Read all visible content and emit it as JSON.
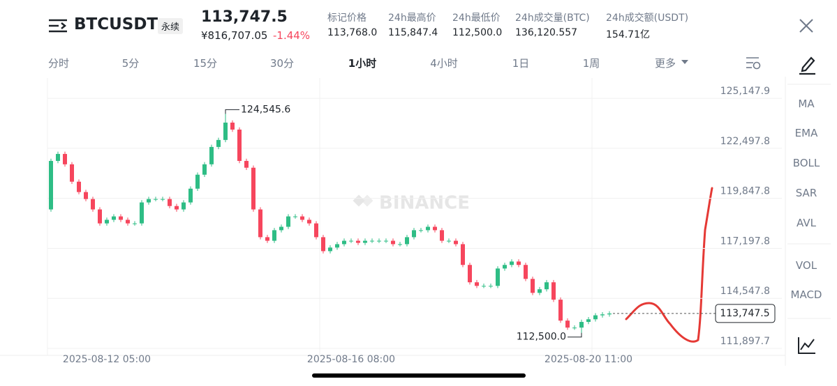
{
  "header": {
    "symbol": "BTCUSDT",
    "contract": "永续",
    "price": "113,747.5",
    "price_cny": "¥816,707.05",
    "change": "-1.44%",
    "stats": [
      {
        "label": "标记价格",
        "value": "113,768.0"
      },
      {
        "label": "24h最高价",
        "value": "115,847.4"
      },
      {
        "label": "24h最低价",
        "value": "112,500.0"
      },
      {
        "label": "24h成交量(BTC)",
        "value": "136,120.557"
      },
      {
        "label": "24h成交额(USDT)",
        "value": "154.71亿"
      }
    ]
  },
  "tabs": [
    "分时",
    "5分",
    "15分",
    "30分",
    "1小时",
    "4小时",
    "1日",
    "1周",
    "更多"
  ],
  "indicators": [
    "MA",
    "EMA",
    "BOLL",
    "SAR",
    "AVL",
    "VOL",
    "MACD"
  ],
  "chart_data": {
    "type": "candlestick",
    "watermark": "BINANCE",
    "up_color": "#2ebd85",
    "down_color": "#f6465d",
    "grid": true,
    "ylim": [
      111530,
      126110
    ],
    "yticks": [
      {
        "value": 125147.9,
        "label": "125,147.9"
      },
      {
        "value": 122497.8,
        "label": "122,497.8"
      },
      {
        "value": 119847.8,
        "label": "119,847.8"
      },
      {
        "value": 117197.8,
        "label": "117,197.8"
      },
      {
        "value": 114547.8,
        "label": "114,547.8"
      },
      {
        "value": 111897.7,
        "label": "111,897.7"
      }
    ],
    "categories": [
      null,
      null,
      null,
      null,
      null,
      null,
      null,
      null,
      "2025-08-12 05:00",
      null,
      null,
      null,
      null,
      null,
      null,
      null,
      null,
      null,
      null,
      null,
      null,
      null,
      null,
      null,
      null,
      null,
      null,
      null,
      null,
      null,
      null,
      null,
      null,
      null,
      null,
      null,
      null,
      null,
      null,
      null,
      null,
      null,
      null,
      "2025-08-16 08:00",
      null,
      null,
      null,
      null,
      null,
      null,
      null,
      null,
      null,
      null,
      null,
      null,
      null,
      null,
      null,
      null,
      null,
      null,
      null,
      null,
      null,
      null,
      null,
      null,
      null,
      null,
      null,
      null,
      null,
      null,
      null,
      null,
      null,
      "2025-08-20 11:00",
      null,
      null,
      null
    ],
    "open": [
      119260,
      121830,
      122200,
      121650,
      120730,
      120180,
      119810,
      119260,
      118520,
      118710,
      118890,
      118710,
      118520,
      118520,
      119630,
      119810,
      119810,
      119810,
      119440,
      119260,
      119630,
      120360,
      121100,
      121650,
      122570,
      122940,
      123860,
      123490,
      121830,
      121470,
      119260,
      117790,
      117600,
      118160,
      118340,
      118890,
      118890,
      118710,
      118520,
      117790,
      117050,
      117240,
      117420,
      117600,
      117600,
      117490,
      117600,
      117600,
      117600,
      117600,
      117420,
      117420,
      117790,
      118160,
      118160,
      118340,
      118160,
      117600,
      117600,
      117420,
      116320,
      115400,
      115210,
      115210,
      115210,
      116130,
      116320,
      116500,
      116320,
      115580,
      114840,
      115030,
      115400,
      114480,
      113370,
      113000,
      113000,
      113300,
      113440,
      113650,
      113700
    ],
    "high": [
      121950,
      122320,
      122320,
      121770,
      120850,
      120300,
      119930,
      119380,
      118830,
      119010,
      119010,
      118830,
      118640,
      119750,
      119930,
      119930,
      119930,
      119930,
      119560,
      119750,
      120480,
      121220,
      121770,
      122690,
      123060,
      124545.6,
      123980,
      123610,
      121950,
      121590,
      119380,
      117910,
      118280,
      118460,
      119010,
      119010,
      119010,
      118830,
      118640,
      117910,
      117360,
      117540,
      117720,
      117720,
      117720,
      117720,
      117720,
      117720,
      117720,
      117720,
      117540,
      117910,
      118280,
      118280,
      118460,
      118460,
      118280,
      117720,
      117720,
      117540,
      116440,
      115520,
      115330,
      115330,
      116250,
      116440,
      116620,
      116620,
      116440,
      115700,
      115150,
      115520,
      115520,
      114600,
      113490,
      113120,
      113420,
      113560,
      113770,
      113820,
      113870
    ],
    "low": [
      119140,
      121710,
      121530,
      120610,
      120060,
      119690,
      119140,
      118400,
      118400,
      118590,
      118590,
      118400,
      118400,
      118400,
      119510,
      119690,
      119690,
      119320,
      119140,
      119140,
      119510,
      120240,
      120980,
      121530,
      122450,
      122820,
      123370,
      121710,
      121350,
      119140,
      117670,
      117480,
      117480,
      118040,
      118220,
      118770,
      118590,
      118400,
      117670,
      116930,
      116930,
      117120,
      117300,
      117480,
      117370,
      117370,
      117480,
      117480,
      117480,
      117300,
      117300,
      117300,
      117670,
      118040,
      118040,
      118040,
      117480,
      117480,
      117300,
      116200,
      115280,
      115090,
      115090,
      115090,
      115090,
      116010,
      116200,
      116200,
      115460,
      114720,
      114720,
      114910,
      114360,
      113250,
      112880,
      112880,
      112500.0,
      113180,
      113320,
      113530,
      113580
    ],
    "close": [
      121830,
      122200,
      121650,
      120730,
      120180,
      119810,
      119260,
      118520,
      118710,
      118890,
      118710,
      118520,
      118520,
      119630,
      119810,
      119810,
      119810,
      119440,
      119260,
      119630,
      120360,
      121100,
      121650,
      122570,
      122940,
      123860,
      123490,
      121830,
      121470,
      119260,
      117790,
      117600,
      118160,
      118340,
      118890,
      118890,
      118710,
      118520,
      117790,
      117050,
      117240,
      117420,
      117600,
      117600,
      117490,
      117600,
      117600,
      117600,
      117600,
      117420,
      117420,
      117790,
      118160,
      118160,
      118340,
      118160,
      117600,
      117600,
      117420,
      116320,
      115400,
      115210,
      115210,
      115210,
      116130,
      116320,
      116500,
      116320,
      115580,
      114840,
      115030,
      115400,
      114480,
      113370,
      113000,
      113000,
      113300,
      113440,
      113650,
      113700,
      113747.5
    ],
    "high_label": {
      "value": 124545.6,
      "label": "124,545.6"
    },
    "low_label": {
      "value": 112500.0,
      "label": "112,500.0"
    },
    "last_price": {
      "value": 113747.5,
      "label": "113,747.5"
    }
  }
}
